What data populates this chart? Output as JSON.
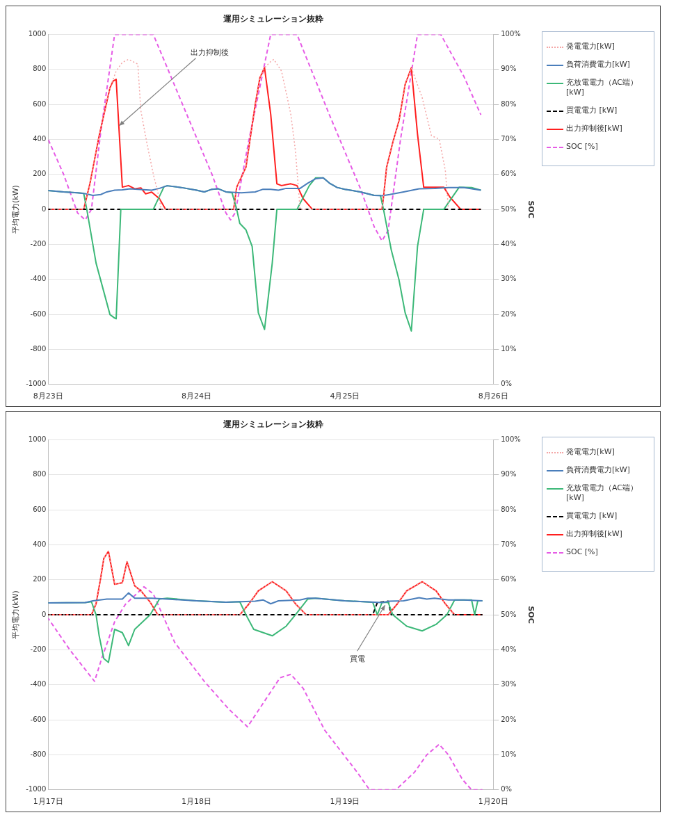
{
  "chart_data": [
    {
      "type": "line",
      "title": "運用シミュレーション抜粋",
      "ylabel": "平均電力(kW)",
      "y2label": "SOC",
      "xlim": [
        "--08-23",
        "--08-26"
      ],
      "xticks": [
        {
          "value": "--08-23",
          "label": "8月23日"
        },
        {
          "value": "--08-24",
          "label": "8月24日"
        },
        {
          "value": "--08-25",
          "label": "4月25日"
        },
        {
          "value": "--08-26",
          "label": "8月26日"
        }
      ],
      "ylim": [
        -1000,
        1000
      ],
      "yticks": [
        -1000,
        -800,
        -600,
        -400,
        -200,
        0,
        200,
        400,
        600,
        800,
        1000
      ],
      "y2lim": [
        0,
        100
      ],
      "y2ticks": [
        {
          "value": 0,
          "label": "0%"
        },
        {
          "value": 10,
          "label": "10%"
        },
        {
          "value": 20,
          "label": "20%"
        },
        {
          "value": 30,
          "label": "30%"
        },
        {
          "value": 40,
          "label": "40%"
        },
        {
          "value": 50,
          "label": "50%"
        },
        {
          "value": 60,
          "label": "60%"
        },
        {
          "value": 70,
          "label": "70%"
        },
        {
          "value": 80,
          "label": "80%"
        },
        {
          "value": 90,
          "label": "90%"
        },
        {
          "value": 100,
          "label": "100%"
        }
      ],
      "grid": "y",
      "legend": "right",
      "marker": "none",
      "annotations": [
        {
          "text": "出力抑制後",
          "x": "--08-23T11:30",
          "y": 478
        }
      ],
      "series": [
        {
          "name": "発電電力[kW]",
          "color": "#f4a6a6",
          "line_style": "dotted",
          "x": [
            "--08-23T00:00",
            "--08-23T05:45",
            "--08-23T06:45",
            "--08-23T08:15",
            "--08-23T10:00",
            "--08-23T11:00",
            "--08-23T12:00",
            "--08-23T13:00",
            "--08-23T14:30",
            "--08-23T15:00",
            "--08-23T16:00",
            "--08-23T17:00",
            "--08-23T18:00",
            "--08-23T18:15",
            "--08-24T06:00",
            "--08-24T06:30",
            "--08-24T08:00",
            "--08-24T09:30",
            "--08-24T10:15",
            "--08-24T11:00",
            "--08-24T12:00",
            "--08-24T12:30",
            "--08-24T13:45",
            "--08-24T15:15",
            "--08-24T16:00",
            "--08-24T16:45",
            "--08-25T06:00",
            "--08-25T06:15",
            "--08-25T06:45",
            "--08-25T07:45",
            "--08-25T08:45",
            "--08-25T09:45",
            "--08-25T10:45",
            "--08-25T12:30",
            "--08-25T14:00",
            "--08-25T15:15",
            "--08-25T16:15",
            "--08-25T16:45"
          ],
          "values": [
            0,
            0,
            146,
            421,
            695,
            790,
            840,
            857,
            830,
            563,
            373,
            203,
            60,
            0,
            0,
            127,
            241,
            601,
            752,
            809,
            845,
            857,
            790,
            544,
            335,
            0,
            0,
            70,
            241,
            383,
            506,
            714,
            809,
            639,
            421,
            402,
            222,
            0
          ]
        },
        {
          "name": "負荷消費電力[kW]",
          "color": "#4a7ebb",
          "line_style": "solid",
          "x": [
            "--08-23T00:00",
            "--08-23T02:30",
            "--08-23T04:45",
            "--08-23T06:00",
            "--08-23T07:15",
            "--08-23T08:30",
            "--08-23T09:30",
            "--08-23T10:45",
            "--08-23T12:00",
            "--08-23T13:15",
            "--08-23T14:30",
            "--08-23T16:45",
            "--08-23T18:00",
            "--08-23T19:15",
            "--08-23T21:30",
            "--08-24T00:00",
            "--08-24T01:15",
            "--08-24T02:30",
            "--08-24T03:30",
            "--08-24T04:45",
            "--08-24T07:15",
            "--08-24T09:30",
            "--08-24T10:45",
            "--08-24T12:00",
            "--08-24T13:15",
            "--08-24T14:30",
            "--08-24T16:45",
            "--08-24T18:00",
            "--08-24T19:15",
            "--08-24T20:30",
            "--08-24T21:30",
            "--08-24T22:45",
            "--08-25T00:00",
            "--08-25T02:30",
            "--08-25T04:45",
            "--08-25T06:00",
            "--08-25T07:15",
            "--08-25T09:30",
            "--08-25T12:00",
            "--08-25T14:30",
            "--08-25T16:45",
            "--08-25T19:15",
            "--08-25T22:00"
          ],
          "values": [
            108,
            100,
            95,
            90,
            80,
            85,
            100,
            110,
            112,
            118,
            115,
            110,
            120,
            135,
            125,
            110,
            100,
            115,
            118,
            100,
            95,
            100,
            115,
            115,
            110,
            120,
            120,
            150,
            175,
            180,
            150,
            125,
            115,
            100,
            80,
            78,
            85,
            100,
            118,
            120,
            125,
            125,
            110
          ]
        },
        {
          "name": "充放電電力（AC端）[kW]",
          "color": "#3cb878",
          "line_style": "solid",
          "x": [
            "--08-23T00:00",
            "--08-23T02:30",
            "--08-23T04:45",
            "--08-23T05:45",
            "--08-23T06:15",
            "--08-23T07:45",
            "--08-23T10:00",
            "--08-23T10:45",
            "--08-23T11:00",
            "--08-23T11:45",
            "--08-23T17:00",
            "--08-23T18:45",
            "--08-23T19:15",
            "--08-23T21:30",
            "--08-24T00:00",
            "--08-24T01:15",
            "--08-24T02:30",
            "--08-24T03:30",
            "--08-24T04:45",
            "--08-24T05:45",
            "--08-24T06:30",
            "--08-24T07:00",
            "--08-24T08:00",
            "--08-24T09:00",
            "--08-24T10:00",
            "--08-24T11:00",
            "--08-24T12:15",
            "--08-24T13:00",
            "--08-24T16:15",
            "--08-24T18:15",
            "--08-24T19:15",
            "--08-24T20:30",
            "--08-24T21:30",
            "--08-24T22:45",
            "--08-25T00:00",
            "--08-25T02:30",
            "--08-25T04:45",
            "--08-25T05:45",
            "--08-25T06:15",
            "--08-25T07:30",
            "--08-25T08:45",
            "--08-25T09:45",
            "--08-25T10:45",
            "--08-25T11:45",
            "--08-25T12:45",
            "--08-25T16:00",
            "--08-25T18:30",
            "--08-25T20:30",
            "--08-25T22:00"
          ],
          "values": [
            108,
            100,
            95,
            92,
            0,
            -307,
            -601,
            -621,
            -625,
            0,
            0,
            130,
            135,
            125,
            110,
            100,
            115,
            118,
            100,
            95,
            0,
            -80,
            -117,
            -212,
            -591,
            -686,
            -307,
            0,
            0,
            136,
            180,
            180,
            150,
            125,
            115,
            100,
            80,
            80,
            0,
            -231,
            -402,
            -591,
            -695,
            -212,
            0,
            0,
            127,
            125,
            110
          ]
        },
        {
          "name": "買電電力 [kW]",
          "color": "#000000",
          "line_style": "dashed",
          "x": [
            "--08-23T00:00",
            "--08-25T22:00"
          ],
          "values": [
            0,
            0
          ]
        },
        {
          "name": "出力抑制後[kW]",
          "color": "#ff1f1f",
          "line_style": "solid",
          "x": [
            "--08-23T00:00",
            "--08-23T05:45",
            "--08-23T06:45",
            "--08-23T08:15",
            "--08-23T10:00",
            "--08-23T10:30",
            "--08-23T11:00",
            "--08-23T12:00",
            "--08-23T13:00",
            "--08-23T14:00",
            "--08-23T15:00",
            "--08-23T15:45",
            "--08-23T16:45",
            "--08-23T18:00",
            "--08-23T19:00",
            "--08-24T06:00",
            "--08-24T06:30",
            "--08-24T08:00",
            "--08-24T09:30",
            "--08-24T10:15",
            "--08-24T11:00",
            "--08-24T12:00",
            "--08-24T13:00",
            "--08-24T13:45",
            "--08-24T15:15",
            "--08-24T16:15",
            "--08-24T17:15",
            "--08-24T18:45",
            "--08-25T06:00",
            "--08-25T06:15",
            "--08-25T06:45",
            "--08-25T07:45",
            "--08-25T08:45",
            "--08-25T09:45",
            "--08-25T10:45",
            "--08-25T11:45",
            "--08-25T12:45",
            "--08-25T14:00",
            "--08-25T16:00",
            "--08-25T17:00",
            "--08-25T18:45",
            "--08-25T22:00"
          ],
          "values": [
            0,
            0,
            146,
            421,
            695,
            733,
            743,
            127,
            136,
            118,
            123,
            89,
            99,
            61,
            0,
            0,
            127,
            241,
            601,
            752,
            809,
            544,
            146,
            136,
            146,
            136,
            61,
            0,
            0,
            70,
            241,
            383,
            506,
            714,
            809,
            430,
            127,
            127,
            127,
            70,
            0,
            0
          ]
        },
        {
          "name": "SOC [%]",
          "color": "#e65ce6",
          "line_style": "dashed",
          "axis": "y2",
          "x": [
            "--08-23T00:00",
            "--08-23T02:30",
            "--08-23T04:45",
            "--08-23T06:00",
            "--08-23T07:00",
            "--08-23T08:30",
            "--08-23T10:45",
            "--08-23T17:00",
            "--08-23T21:30",
            "--08-24T02:30",
            "--08-24T04:45",
            "--08-24T05:30",
            "--08-24T06:15",
            "--08-24T08:30",
            "--08-24T12:00",
            "--08-24T16:15",
            "--08-24T21:30",
            "--08-25T02:30",
            "--08-25T04:45",
            "--08-25T06:00",
            "--08-25T07:00",
            "--08-25T09:00",
            "--08-25T11:45",
            "--08-25T15:30",
            "--08-25T19:15",
            "--08-25T22:00"
          ],
          "values": [
            70,
            60,
            49,
            47,
            50,
            72,
            100,
            100,
            81,
            60,
            49,
            47,
            49,
            70,
            100,
            100,
            77,
            56,
            45,
            41,
            44,
            70,
            100,
            100,
            88,
            77
          ]
        }
      ]
    },
    {
      "type": "line",
      "title": "運用シミュレーション抜粋",
      "ylabel": "平均電力(kW)",
      "y2label": "SOC",
      "xlim": [
        "--01-17",
        "--01-20"
      ],
      "xticks": [
        {
          "value": "--01-17",
          "label": "1月17日"
        },
        {
          "value": "--01-18",
          "label": "1月18日"
        },
        {
          "value": "--01-19",
          "label": "1月19日"
        },
        {
          "value": "--01-20",
          "label": "1月20日"
        }
      ],
      "ylim": [
        -1000,
        1000
      ],
      "yticks": [
        -1000,
        -800,
        -600,
        -400,
        -200,
        0,
        200,
        400,
        600,
        800,
        1000
      ],
      "y2lim": [
        0,
        100
      ],
      "y2ticks": [
        {
          "value": 0,
          "label": "0%"
        },
        {
          "value": 10,
          "label": "10%"
        },
        {
          "value": 20,
          "label": "20%"
        },
        {
          "value": 30,
          "label": "30%"
        },
        {
          "value": 40,
          "label": "40%"
        },
        {
          "value": 50,
          "label": "50%"
        },
        {
          "value": 60,
          "label": "60%"
        },
        {
          "value": 70,
          "label": "70%"
        },
        {
          "value": 80,
          "label": "80%"
        },
        {
          "value": 90,
          "label": "90%"
        },
        {
          "value": 100,
          "label": "100%"
        }
      ],
      "grid": "y",
      "legend": "right",
      "marker": "none",
      "annotations": [
        {
          "text": "買電",
          "x": "--01-19T06:30",
          "y": 55
        }
      ],
      "series": [
        {
          "name": "発電電力[kW]",
          "color": "#f4a6a6",
          "line_style": "dotted",
          "x": [
            "--01-17T00:00",
            "--01-17T07:00",
            "--01-17T07:45",
            "--01-17T08:30",
            "--01-17T09:00",
            "--01-17T09:45",
            "--01-17T10:45",
            "--01-17T12:00",
            "--01-17T12:45",
            "--01-17T14:00",
            "--01-17T15:00",
            "--01-17T16:30",
            "--01-17T17:45",
            "--01-18T07:00",
            "--01-18T08:30",
            "--01-18T10:00",
            "--01-18T12:15",
            "--01-18T14:30",
            "--01-18T16:00",
            "--01-18T17:45",
            "--01-19T07:00",
            "--01-19T08:30",
            "--01-19T10:00",
            "--01-19T12:30",
            "--01-19T14:45",
            "--01-19T16:15",
            "--01-19T17:45"
          ],
          "values": [
            0,
            0,
            63,
            211,
            322,
            363,
            174,
            183,
            303,
            165,
            137,
            72,
            0,
            0,
            63,
            137,
            189,
            137,
            63,
            0,
            0,
            63,
            137,
            189,
            137,
            63,
            0
          ]
        },
        {
          "name": "負荷消費電力[kW]",
          "color": "#4a7ebb",
          "line_style": "solid",
          "x": [
            "--01-17T00:00",
            "--01-17T06:00",
            "--01-17T07:15",
            "--01-17T09:30",
            "--01-17T12:00",
            "--01-17T13:00",
            "--01-17T14:00",
            "--01-17T16:45",
            "--01-17T19:15",
            "--01-18T00:00",
            "--01-18T04:45",
            "--01-18T07:15",
            "--01-18T09:30",
            "--01-18T10:45",
            "--01-18T12:00",
            "--01-18T13:15",
            "--01-18T16:45",
            "--01-18T18:00",
            "--01-18T19:15",
            "--01-19T00:00",
            "--01-19T04:45",
            "--01-19T06:00",
            "--01-19T07:15",
            "--01-19T09:30",
            "--01-19T12:00",
            "--01-19T13:15",
            "--01-19T14:30",
            "--01-19T16:45",
            "--01-19T19:15",
            "--01-19T22:15"
          ],
          "values": [
            68,
            70,
            80,
            90,
            90,
            125,
            95,
            95,
            90,
            80,
            72,
            75,
            78,
            85,
            63,
            80,
            85,
            95,
            95,
            80,
            72,
            70,
            78,
            80,
            98,
            90,
            95,
            85,
            85,
            80
          ]
        },
        {
          "name": "充放電電力（AC端）[kW]",
          "color": "#3cb878",
          "line_style": "solid",
          "x": [
            "--01-17T00:00",
            "--01-17T06:00",
            "--01-17T07:00",
            "--01-17T07:45",
            "--01-17T08:15",
            "--01-17T09:00",
            "--01-17T09:45",
            "--01-17T10:45",
            "--01-17T12:00",
            "--01-17T13:00",
            "--01-17T14:00",
            "--01-17T16:30",
            "--01-17T18:00",
            "--01-17T19:15",
            "--01-18T00:00",
            "--01-18T04:45",
            "--01-18T07:00",
            "--01-18T08:00",
            "--01-18T09:15",
            "--01-18T12:15",
            "--01-18T14:30",
            "--01-18T16:00",
            "--01-18T18:00",
            "--01-18T19:15",
            "--01-19T00:00",
            "--01-19T04:30",
            "--01-19T05:15",
            "--01-19T06:00",
            "--01-19T07:00",
            "--01-19T07:45",
            "--01-19T10:00",
            "--01-19T12:30",
            "--01-19T14:45",
            "--01-19T16:30",
            "--01-19T17:45",
            "--01-19T20:30",
            "--01-19T21:00",
            "--01-19T21:30",
            "--01-19T22:15"
          ],
          "values": [
            68,
            70,
            75,
            0,
            -120,
            -250,
            -272,
            -83,
            -102,
            -176,
            -83,
            0,
            90,
            95,
            80,
            72,
            75,
            0,
            -83,
            -120,
            -65,
            0,
            90,
            95,
            80,
            72,
            0,
            70,
            72,
            0,
            -65,
            -92,
            -55,
            0,
            85,
            85,
            0,
            80,
            80
          ]
        },
        {
          "name": "買電電力 [kW]",
          "color": "#000000",
          "line_style": "dashed",
          "x": [
            "--01-17T00:00",
            "--01-19T04:30",
            "--01-19T05:15",
            "--01-19T07:00",
            "--01-19T07:30",
            "--01-19T22:15"
          ],
          "values": [
            0,
            0,
            70,
            78,
            0,
            0
          ]
        },
        {
          "name": "出力抑制後[kW]",
          "color": "#ff1f1f",
          "line_style": "solid",
          "x": [
            "--01-17T00:00",
            "--01-17T07:00",
            "--01-17T07:45",
            "--01-17T08:30",
            "--01-17T09:00",
            "--01-17T09:45",
            "--01-17T10:45",
            "--01-17T12:00",
            "--01-17T12:45",
            "--01-17T14:00",
            "--01-17T15:00",
            "--01-17T16:30",
            "--01-17T17:45",
            "--01-18T07:00",
            "--01-18T08:30",
            "--01-18T10:00",
            "--01-18T12:15",
            "--01-18T14:30",
            "--01-18T16:00",
            "--01-18T17:45",
            "--01-19T07:00",
            "--01-19T08:30",
            "--01-19T10:00",
            "--01-19T12:30",
            "--01-19T14:45",
            "--01-19T16:15",
            "--01-19T17:45",
            "--01-19T22:15"
          ],
          "values": [
            0,
            0,
            63,
            211,
            322,
            363,
            174,
            183,
            303,
            165,
            137,
            72,
            0,
            0,
            63,
            137,
            189,
            137,
            63,
            0,
            0,
            63,
            137,
            189,
            137,
            63,
            0,
            0
          ]
        },
        {
          "name": "SOC [%]",
          "color": "#e65ce6",
          "line_style": "dashed",
          "axis": "y2",
          "x": [
            "--01-17T00:00",
            "--01-17T03:30",
            "--01-17T07:30",
            "--01-17T08:45",
            "--01-17T10:45",
            "--01-17T12:30",
            "--01-17T15:30",
            "--01-17T17:00",
            "--01-17T18:15",
            "--01-17T20:30",
            "--01-18T01:15",
            "--01-18T05:15",
            "--01-18T08:15",
            "--01-18T10:30",
            "--01-18T13:30",
            "--01-18T15:15",
            "--01-18T17:15",
            "--01-18T20:45",
            "--01-19T02:00",
            "--01-19T04:00",
            "--01-19T08:15",
            "--01-19T11:15",
            "--01-19T13:15",
            "--01-19T15:15",
            "--01-19T16:45",
            "--01-19T19:00",
            "--01-19T20:30",
            "--01-19T22:15"
          ],
          "values": [
            49,
            40,
            31,
            38,
            48,
            53,
            58,
            56,
            51,
            42,
            31,
            23,
            18,
            24,
            32,
            33,
            29,
            17,
            5,
            0,
            0,
            5,
            10,
            13,
            10,
            3,
            0,
            0
          ]
        }
      ]
    }
  ]
}
